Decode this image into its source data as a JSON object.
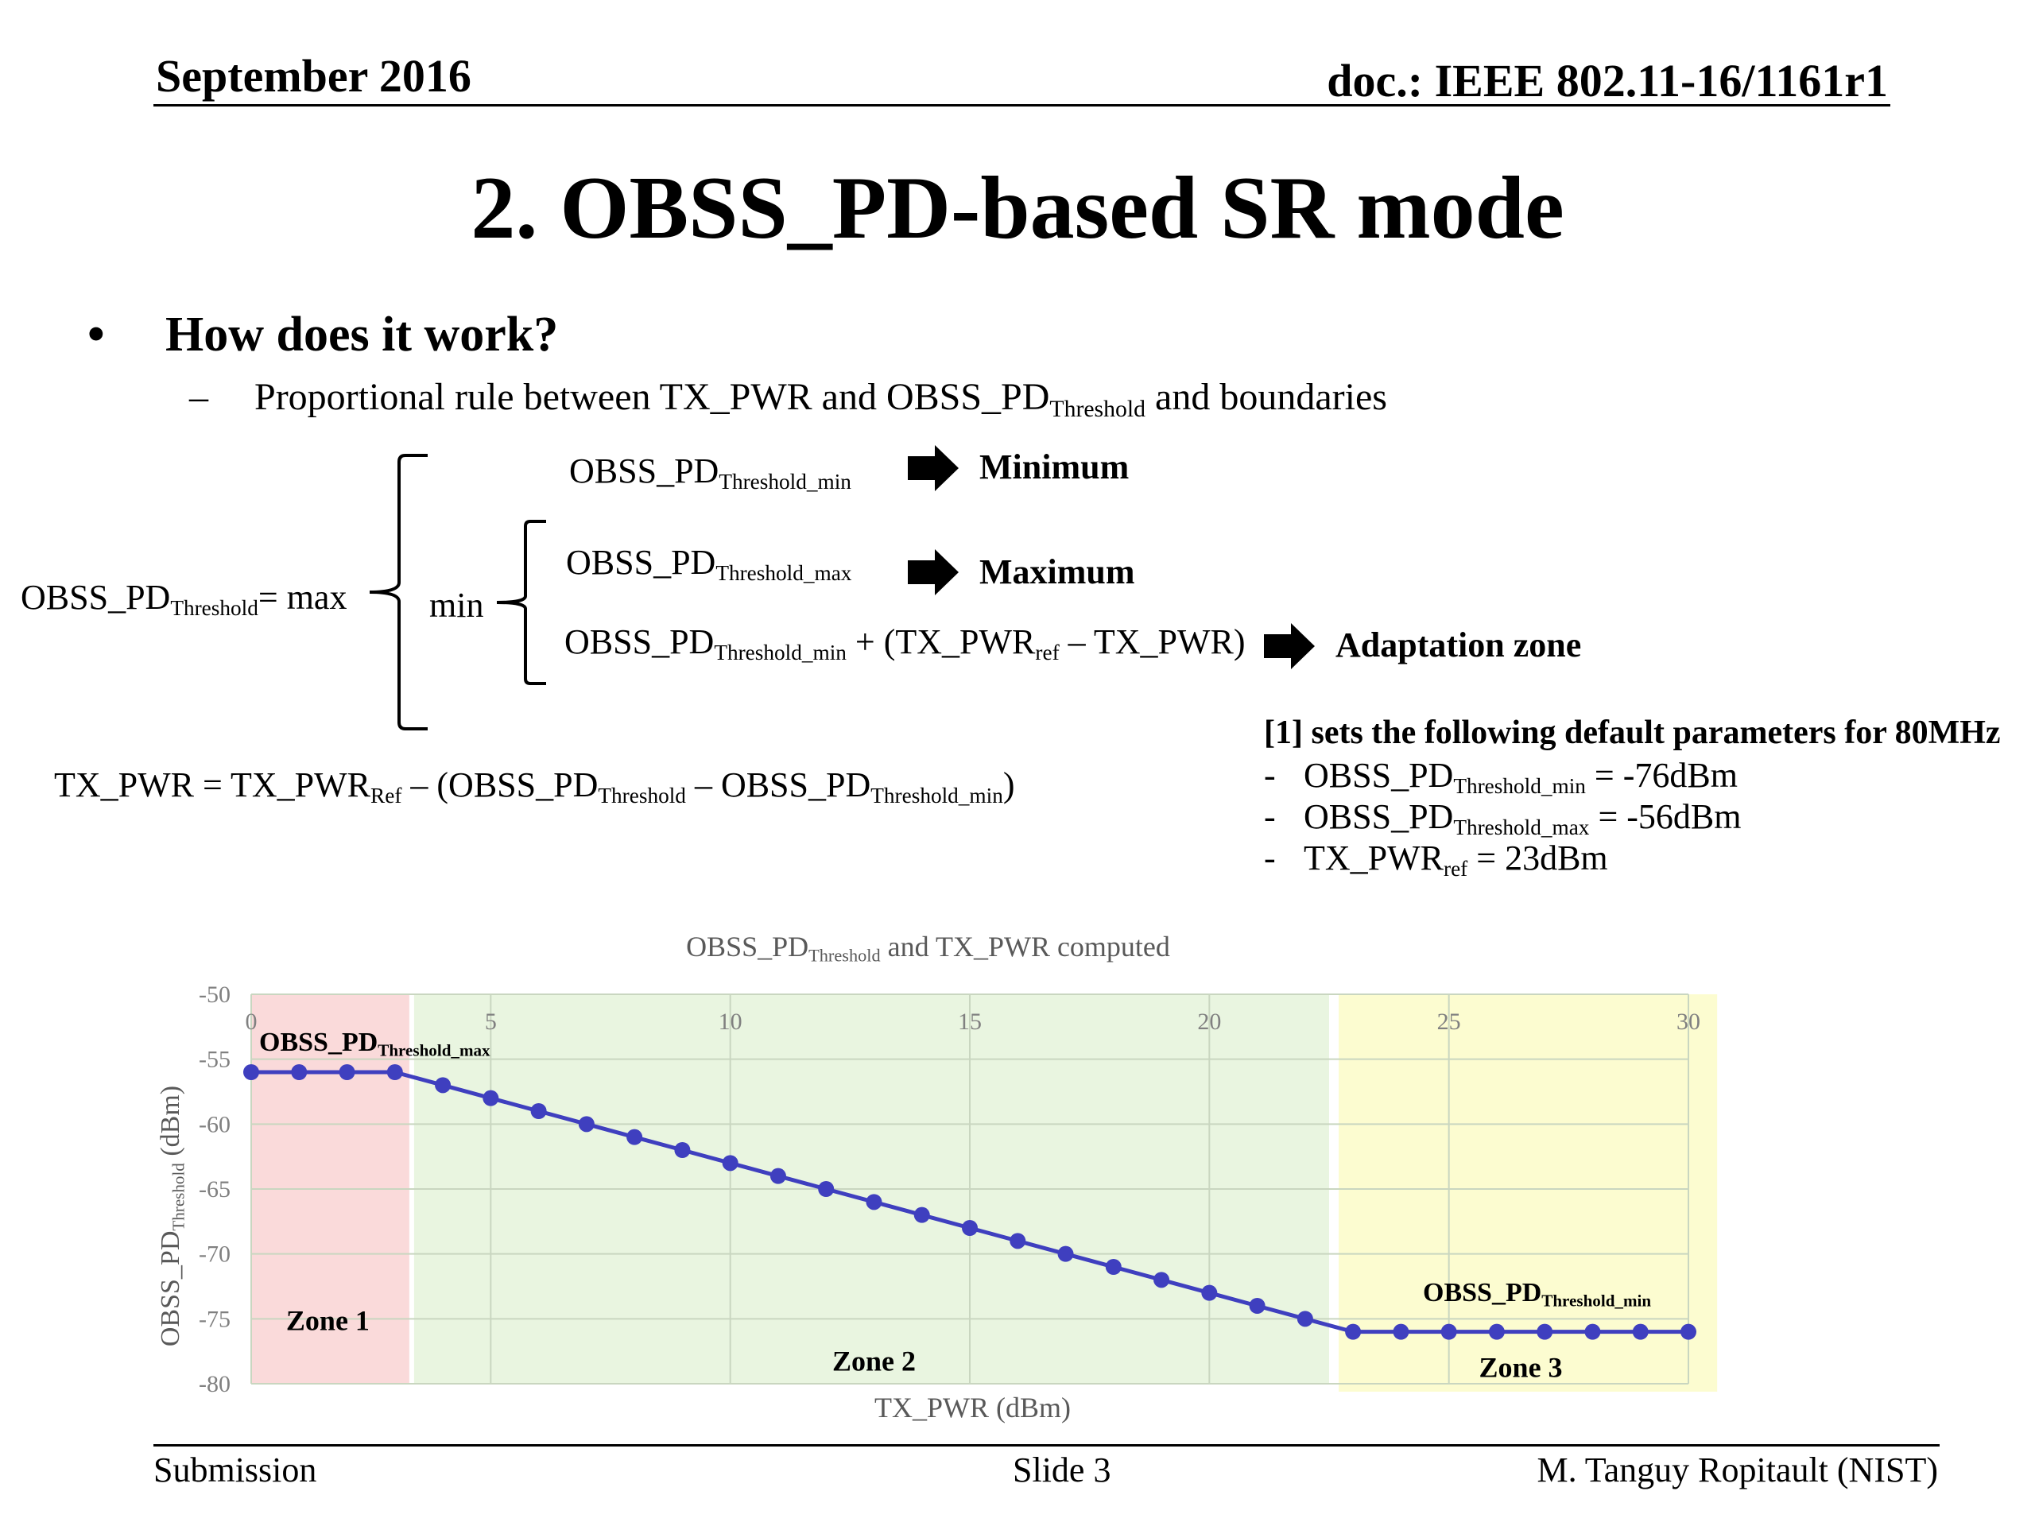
{
  "header": {
    "date": "September 2016",
    "doc_id": "doc.: IEEE 802.11-16/1161r1"
  },
  "slide_title": "2. OBSS_PD-based SR mode",
  "bullet": {
    "marker": "•",
    "text": "How does it work?"
  },
  "subbullet": {
    "marker": "–",
    "text_before": "Proportional rule between TX_PWR and OBSS_PD",
    "sub": "Threshold",
    "text_after": "and boundaries"
  },
  "formula": {
    "lhs": {
      "main": "OBSS_PD",
      "sub": "Threshold",
      "tail": "= max"
    },
    "min_label": "min",
    "case_min": {
      "main": "OBSS_PD",
      "sub": "Threshold_min"
    },
    "case_max": {
      "main": "OBSS_PD",
      "sub": "Threshold_max"
    },
    "case_adapt": {
      "main": "OBSS_PD",
      "sub": "Threshold_min",
      "plus": "+ (TX_PWR",
      "ref": "ref",
      "tail": "– TX_PWR)"
    },
    "label_min": "Minimum",
    "label_max": "Maximum",
    "label_adapt": "Adaptation zone"
  },
  "txpwr_formula": {
    "a": "TX_PWR = TX_PWR",
    "a_sub": "Ref",
    "b": "– (OBSS_PD",
    "b_sub": "Threshold",
    "c": "– OBSS_PD",
    "c_sub": "Threshold_min",
    "d": ")"
  },
  "defaults": {
    "title": "[1] sets the following default parameters for 80MHz",
    "items": [
      {
        "dash": "-",
        "main": "OBSS_PD",
        "sub": "Threshold_min",
        "tail": "= -76dBm"
      },
      {
        "dash": "-",
        "main": "OBSS_PD",
        "sub": "Threshold_max",
        "tail": "= -56dBm"
      },
      {
        "dash": "-",
        "main": "TX_PWR",
        "sub": "ref",
        "tail": "= 23dBm"
      }
    ]
  },
  "chart_data": {
    "type": "line",
    "title": {
      "main": "OBSS_PD",
      "sub": "Threshold",
      "tail": " and TX_PWR computed"
    },
    "xlabel": "TX_PWR (dBm)",
    "ylabel": {
      "main": "OBSS_PD",
      "sub": "Threshold",
      "tail": " (dBm)"
    },
    "xlim": [
      0,
      30
    ],
    "ylim": [
      -80,
      -50
    ],
    "xticks": [
      0,
      5,
      10,
      15,
      20,
      25,
      30
    ],
    "yticks": [
      -50,
      -55,
      -60,
      -65,
      -70,
      -75,
      -80
    ],
    "grid": true,
    "x": [
      0,
      1,
      2,
      3,
      4,
      5,
      6,
      7,
      8,
      9,
      10,
      11,
      12,
      13,
      14,
      15,
      16,
      17,
      18,
      19,
      20,
      21,
      22,
      23,
      24,
      25,
      26,
      27,
      28,
      29,
      30
    ],
    "series": [
      {
        "values": [
          -56,
          -56,
          -56,
          -56,
          -57,
          -58,
          -59,
          -60,
          -61,
          -62,
          -63,
          -64,
          -65,
          -66,
          -67,
          -68,
          -69,
          -70,
          -71,
          -72,
          -73,
          -74,
          -75,
          -76,
          -76,
          -76,
          -76,
          -76,
          -76,
          -76,
          -76
        ],
        "color": "#3f3fbf"
      }
    ],
    "zones": [
      {
        "label": "Zone 1",
        "from": 0,
        "to": 3.3,
        "color": "#fadada"
      },
      {
        "label": "Zone 2",
        "from": 3.4,
        "to": 22.5,
        "color": "#e9f5e0"
      },
      {
        "label": "Zone 3",
        "from": 22.7,
        "to": 30.6,
        "color": "#fcfcd0"
      }
    ],
    "annotations": [
      {
        "main": "OBSS_PD",
        "sub": "Threshold_max"
      },
      {
        "main": "OBSS_PD",
        "sub": "Threshold_min"
      }
    ]
  },
  "footer": {
    "left": "Submission",
    "center": "Slide 3",
    "right": "M. Tanguy Ropitault (NIST)"
  }
}
